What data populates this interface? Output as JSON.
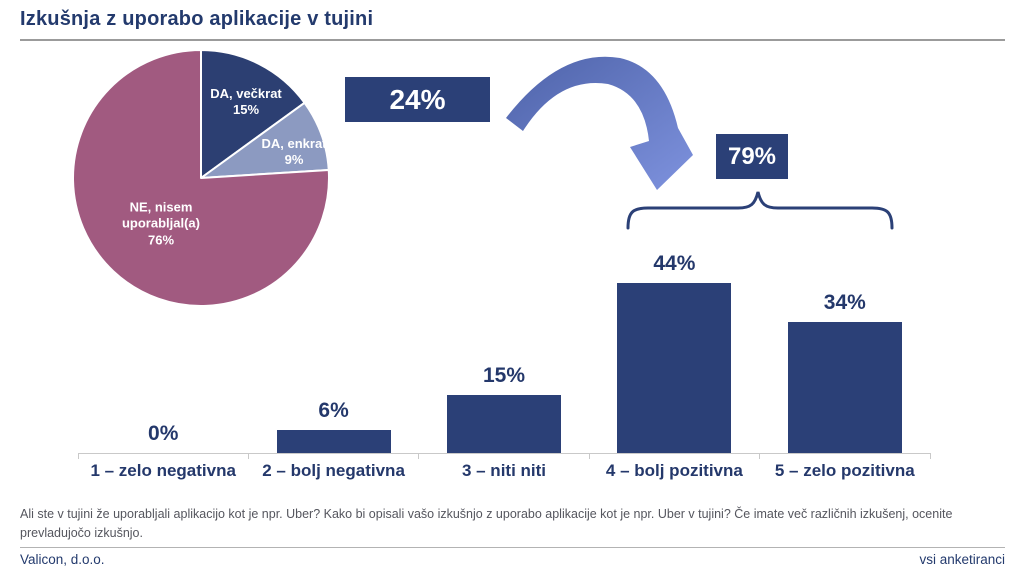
{
  "slide": {
    "title": "Izkušnja z uporabo aplikacije v tujini",
    "footnote": "Ali ste v tujini že uporabljali aplikacijo kot je npr. Uber? Kako bi opisali vašo izkušnjo z uporabo aplikacije kot je npr. Uber v tujini? Če imate več različnih izkušenj, ocenite prevladujočo izkušnjo.",
    "footer_left": "Valicon, d.o.o.",
    "footer_right": "vsi anketiranci"
  },
  "callouts": {
    "yes_total": "24%",
    "positive_total": "79%"
  },
  "icons": {
    "arrow": "curved-arrow-down-right",
    "brace": "curly-brace-over-bars"
  },
  "colors": {
    "navy_text": "#233a6d",
    "bar_fill": "#2b4077",
    "pie_dark_blue": "#2c3f72",
    "pie_light_blue": "#8c9ac1",
    "pie_purple": "#a15a80",
    "arrow_blue_start": "#4e63a9",
    "arrow_blue_end": "#7e92de",
    "axis_gray": "#c9c9c9",
    "footnote_gray": "#55565e"
  },
  "chart_data": [
    {
      "type": "pie",
      "start_angle": "top",
      "direction": "clockwise",
      "label_color": "#ffffff",
      "slices": [
        {
          "label": "DA, večkrat",
          "pct_label": "15%",
          "value": 15,
          "color": "#2c3f72"
        },
        {
          "label": "DA, enkrat",
          "pct_label": "9%",
          "value": 9,
          "color": "#8c9ac1"
        },
        {
          "label": "NE, nisem uporabljal(a)",
          "pct_label": "76%",
          "value": 76,
          "color": "#a15a80"
        }
      ]
    },
    {
      "type": "bar",
      "categories": [
        "1 – zelo negativna",
        "2 – bolj negativna",
        "3 – niti niti",
        "4 – bolj pozitivna",
        "5 – zelo pozitivna"
      ],
      "values": [
        0,
        6,
        15,
        44,
        34
      ],
      "value_labels": [
        "0%",
        "6%",
        "15%",
        "44%",
        "34%"
      ],
      "bar_color": "#2b4077",
      "ylim": [
        0,
        50
      ],
      "grid": false,
      "legend": "none"
    }
  ]
}
